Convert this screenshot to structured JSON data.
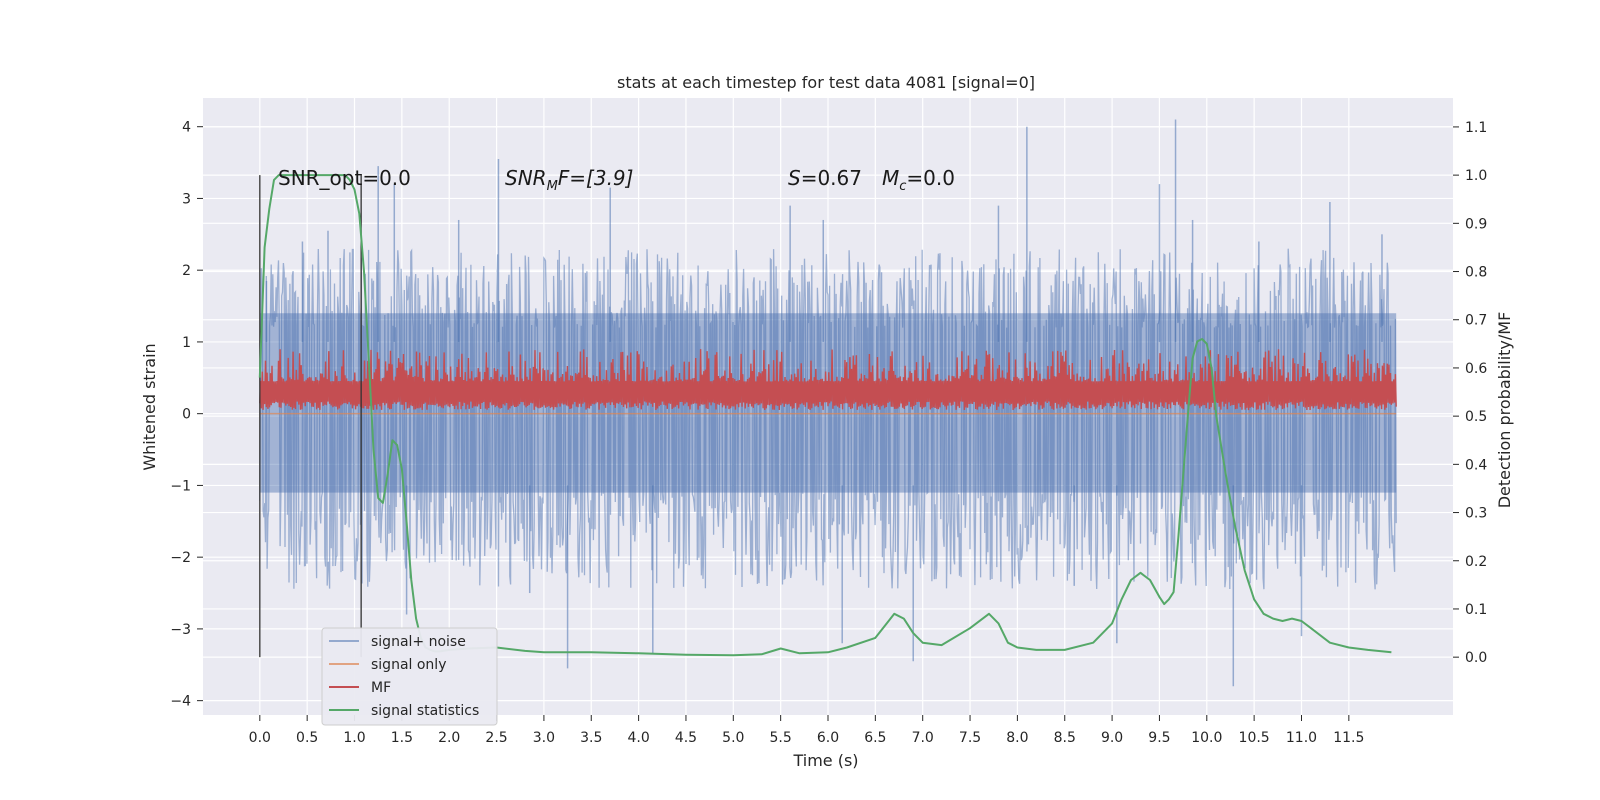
{
  "chart_data": {
    "type": "line",
    "title": "stats at each timestep for test data 4081 [signal=0]",
    "xlabel": "Time (s)",
    "ylabel": "Whitened strain",
    "y2label": "Detection probability/MF",
    "xlim": [
      -0.6,
      12.6
    ],
    "ylim": [
      -4.2,
      4.4
    ],
    "y2lim": [
      -0.12,
      1.16
    ],
    "x_ticks": [
      "0.0",
      "0.5",
      "1.0",
      "1.5",
      "2.0",
      "2.5",
      "3.0",
      "3.5",
      "4.0",
      "4.5",
      "5.0",
      "5.5",
      "6.0",
      "6.5",
      "7.0",
      "7.5",
      "8.0",
      "8.5",
      "9.0",
      "9.5",
      "10.0",
      "10.5",
      "11.0",
      "11.5"
    ],
    "y_ticks": [
      "4",
      "3",
      "2",
      "1",
      "0",
      "−1",
      "−2",
      "−3",
      "−4"
    ],
    "y2_ticks": [
      "1.1",
      "1.0",
      "0.9",
      "0.8",
      "0.7",
      "0.6",
      "0.5",
      "0.4",
      "0.3",
      "0.2",
      "0.1",
      "0.0"
    ],
    "grid": true,
    "legend_position": "lower-left",
    "annotations": {
      "snr_opt": "SNR_opt=0.0",
      "snr_mf_sym": "SNR",
      "snr_mf_sub": "M",
      "snr_mf_rest": "F=[3.9]",
      "s_sym": "S",
      "s_rest": "=0.67",
      "mc_sym": "M",
      "mc_sub": "c",
      "mc_rest": "=0.0"
    },
    "vlines_x": [
      0.0,
      1.07
    ],
    "series": [
      {
        "name": "signal+ noise",
        "color": "#4c72b0",
        "axis": "left",
        "description_values": {
          "x_range": [
            0.0,
            12.0
          ],
          "baseline_min": -1.1,
          "baseline_max": 1.4,
          "peak_max": 4.1,
          "peak_min": -3.8
        },
        "spikes": [
          [
            0.07,
            1.85
          ],
          [
            0.45,
            2.4
          ],
          [
            0.72,
            2.55
          ],
          [
            1.25,
            3.45
          ],
          [
            1.42,
            3.2
          ],
          [
            1.55,
            -2.8
          ],
          [
            2.1,
            2.7
          ],
          [
            2.52,
            3.55
          ],
          [
            2.85,
            -2.5
          ],
          [
            3.25,
            -3.55
          ],
          [
            3.7,
            3.15
          ],
          [
            4.15,
            -3.35
          ],
          [
            5.6,
            2.9
          ],
          [
            5.95,
            2.7
          ],
          [
            6.15,
            -3.2
          ],
          [
            6.9,
            -3.45
          ],
          [
            7.8,
            2.9
          ],
          [
            8.1,
            4.0
          ],
          [
            8.6,
            -2.4
          ],
          [
            9.05,
            -3.2
          ],
          [
            9.5,
            3.2
          ],
          [
            9.67,
            4.1
          ],
          [
            9.85,
            2.7
          ],
          [
            10.28,
            -3.8
          ],
          [
            10.55,
            2.4
          ],
          [
            11.0,
            -3.1
          ],
          [
            11.3,
            2.95
          ],
          [
            11.85,
            2.5
          ]
        ]
      },
      {
        "name": "signal only",
        "color": "#dd8452",
        "axis": "left",
        "x": [
          0.0,
          12.0
        ],
        "y": [
          0.0,
          0.0
        ]
      },
      {
        "name": "MF",
        "color": "#c44e52",
        "axis": "left",
        "description_values": {
          "x_range": [
            0.0,
            12.0
          ],
          "baseline": 0.05,
          "typical_max": 0.55,
          "peak_max": 0.95
        }
      },
      {
        "name": "signal statistics",
        "color": "#55a868",
        "axis": "right",
        "x": [
          0.0,
          0.05,
          0.1,
          0.15,
          0.2,
          0.3,
          0.5,
          0.7,
          0.9,
          0.95,
          1.0,
          1.05,
          1.1,
          1.15,
          1.2,
          1.25,
          1.3,
          1.35,
          1.4,
          1.45,
          1.5,
          1.55,
          1.6,
          1.65,
          1.7,
          1.75,
          1.8,
          1.85,
          1.9,
          2.0,
          2.2,
          2.5,
          2.8,
          3.0,
          3.5,
          4.0,
          4.5,
          5.0,
          5.3,
          5.5,
          5.7,
          6.0,
          6.2,
          6.5,
          6.7,
          6.8,
          6.9,
          7.0,
          7.2,
          7.5,
          7.7,
          7.8,
          7.9,
          8.0,
          8.2,
          8.5,
          8.8,
          9.0,
          9.1,
          9.2,
          9.3,
          9.4,
          9.5,
          9.55,
          9.6,
          9.65,
          9.7,
          9.8,
          9.85,
          9.9,
          9.95,
          10.0,
          10.05,
          10.1,
          10.2,
          10.3,
          10.4,
          10.5,
          10.6,
          10.7,
          10.8,
          10.9,
          11.0,
          11.1,
          11.3,
          11.5,
          11.7,
          11.95
        ],
        "y": [
          0.58,
          0.85,
          0.93,
          0.99,
          1.0,
          1.0,
          1.0,
          1.0,
          1.0,
          0.99,
          0.97,
          0.92,
          0.8,
          0.62,
          0.43,
          0.33,
          0.32,
          0.38,
          0.45,
          0.44,
          0.39,
          0.28,
          0.16,
          0.08,
          0.04,
          0.02,
          0.015,
          0.012,
          0.012,
          0.015,
          0.018,
          0.02,
          0.013,
          0.01,
          0.01,
          0.008,
          0.005,
          0.004,
          0.006,
          0.018,
          0.008,
          0.01,
          0.02,
          0.04,
          0.09,
          0.08,
          0.05,
          0.03,
          0.025,
          0.06,
          0.09,
          0.07,
          0.03,
          0.02,
          0.015,
          0.015,
          0.03,
          0.07,
          0.12,
          0.16,
          0.175,
          0.16,
          0.125,
          0.11,
          0.12,
          0.135,
          0.25,
          0.5,
          0.62,
          0.655,
          0.66,
          0.65,
          0.6,
          0.5,
          0.38,
          0.27,
          0.18,
          0.12,
          0.09,
          0.08,
          0.075,
          0.08,
          0.075,
          0.06,
          0.03,
          0.02,
          0.015,
          0.01
        ]
      }
    ]
  }
}
